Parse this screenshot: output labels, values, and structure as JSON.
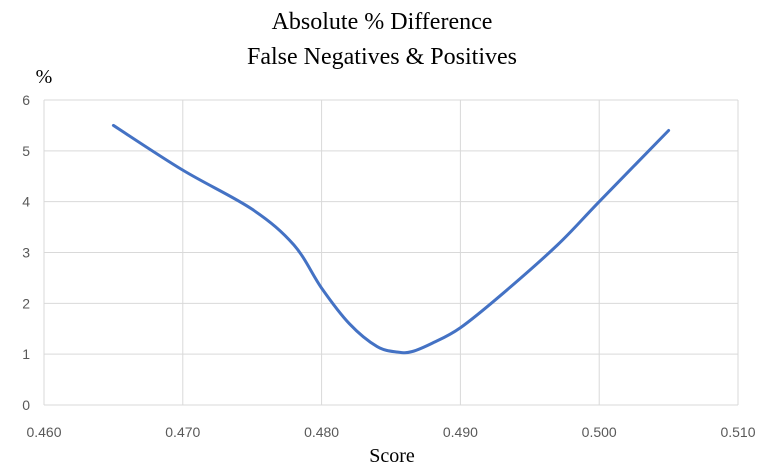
{
  "chart_data": {
    "type": "line",
    "title_lines": [
      "Absolute % Difference",
      "False Negatives & Positives"
    ],
    "xlabel": "Score",
    "ylabel": "%",
    "xlim": [
      0.46,
      0.51
    ],
    "ylim": [
      0,
      6
    ],
    "x_ticks": [
      "0.460",
      "0.470",
      "0.480",
      "0.490",
      "0.500",
      "0.510"
    ],
    "y_ticks": [
      "0",
      "1",
      "2",
      "3",
      "4",
      "5",
      "6"
    ],
    "grid": true,
    "legend": "none",
    "series": [
      {
        "color": "#4472c4",
        "x": [
          0.465,
          0.47,
          0.475,
          0.478,
          0.48,
          0.482,
          0.484,
          0.4855,
          0.4865,
          0.488,
          0.49,
          0.493,
          0.497,
          0.5,
          0.505
        ],
        "y": [
          5.5,
          4.62,
          3.85,
          3.15,
          2.3,
          1.6,
          1.15,
          1.04,
          1.05,
          1.22,
          1.52,
          2.18,
          3.15,
          4.0,
          5.4
        ]
      }
    ]
  }
}
